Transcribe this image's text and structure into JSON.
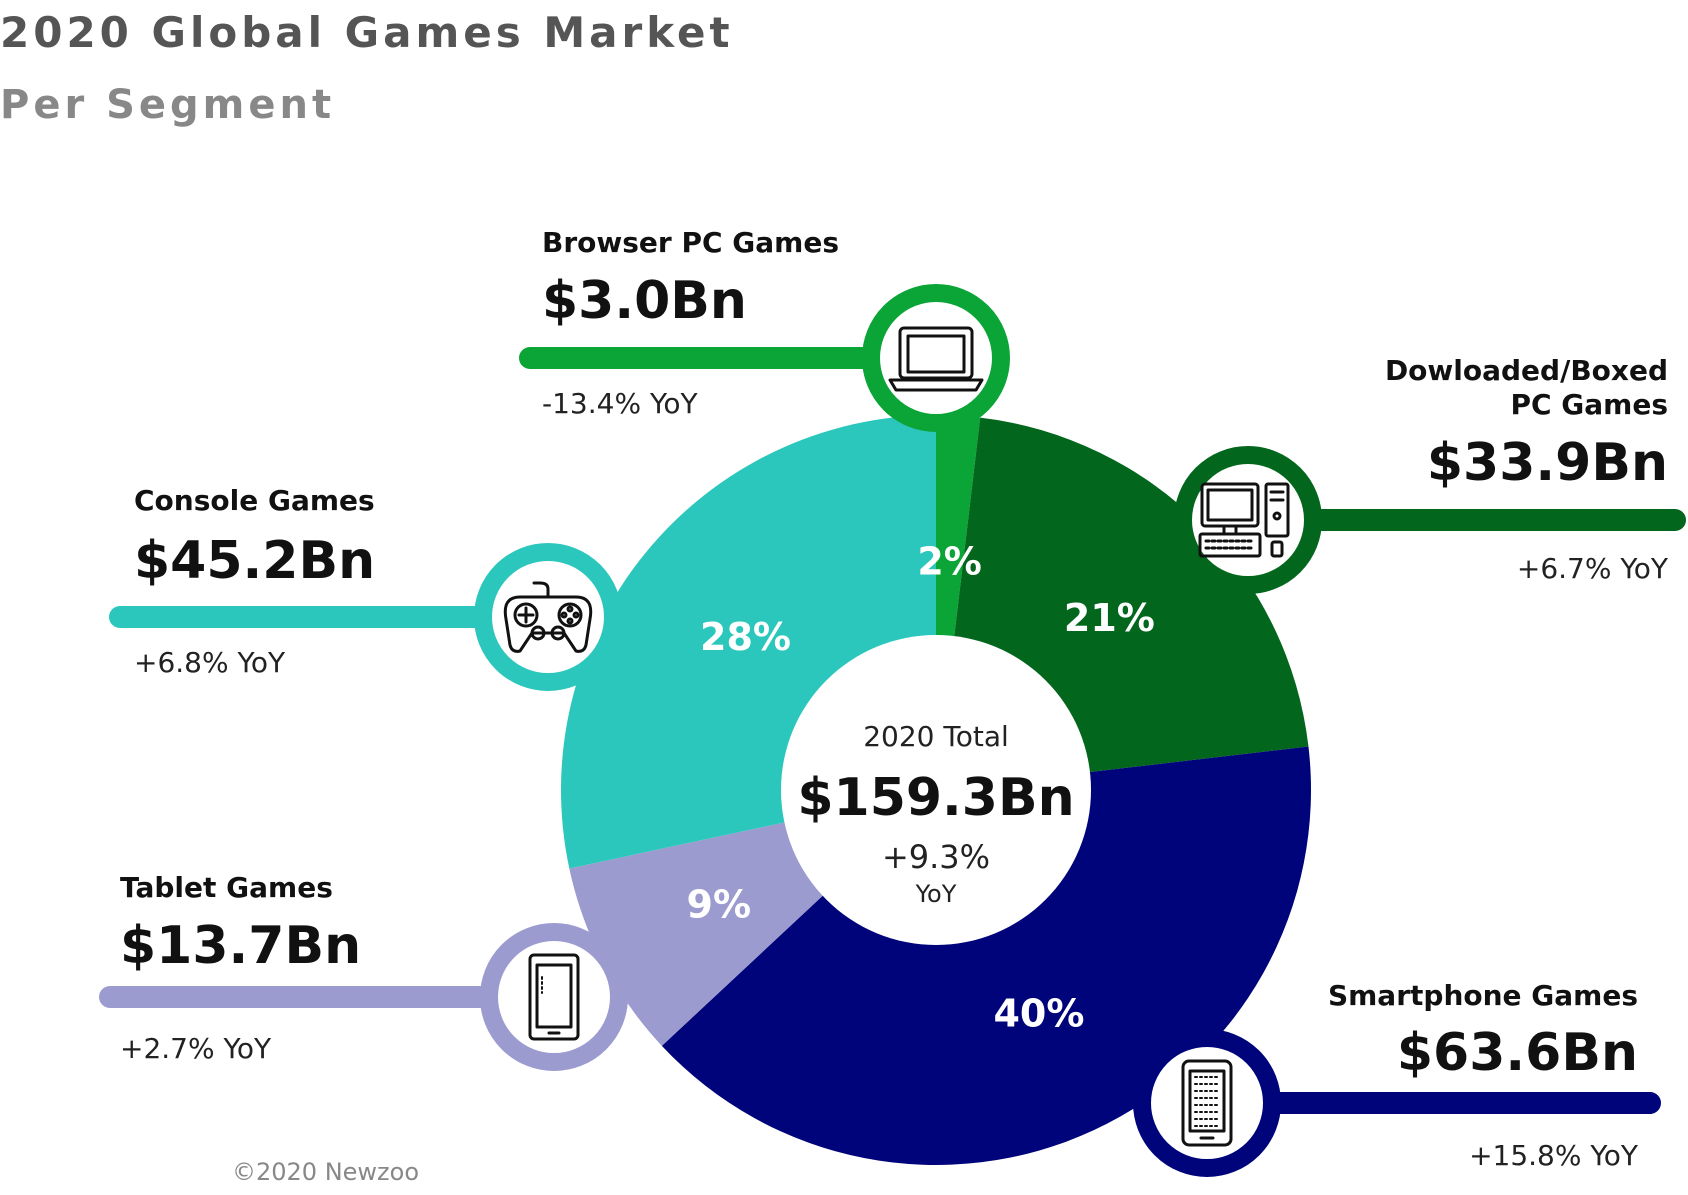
{
  "header": {
    "title": "2020 Global Games Market",
    "subtitle": "Per Segment"
  },
  "center": {
    "label": "2020 Total",
    "value": "$159.3Bn",
    "growth": "+9.3%",
    "growth_unit": "YoY"
  },
  "footer": {
    "copyright": "©2020 Newzoo"
  },
  "chart_data": {
    "type": "pie",
    "title": "2020 Global Games Market",
    "subtitle": "Per Segment",
    "total": 159.3,
    "total_growth_pct": 9.3,
    "unit": "$Bn",
    "slices": [
      {
        "label": "Browser PC Games",
        "value": 3.0,
        "value_label": "$3.0Bn",
        "share": 2,
        "share_label": "2%",
        "growth_pct": -13.4,
        "growth_label": "-13.4% YoY",
        "color": "#0aa536",
        "icon": "laptop-icon"
      },
      {
        "label": "Dowloaded/Boxed PC Games",
        "value": 33.9,
        "value_label": "$33.9Bn",
        "share": 21,
        "share_label": "21%",
        "growth_pct": 6.7,
        "growth_label": "+6.7% YoY",
        "color": "#03661d",
        "icon": "desktop-computer-icon"
      },
      {
        "label": "Smartphone Games",
        "value": 63.6,
        "value_label": "$63.6Bn",
        "share": 40,
        "share_label": "40%",
        "growth_pct": 15.8,
        "growth_label": "+15.8% YoY",
        "color": "#00047a",
        "icon": "smartphone-icon"
      },
      {
        "label": "Tablet Games",
        "value": 13.7,
        "value_label": "$13.7Bn",
        "share": 9,
        "share_label": "9%",
        "growth_pct": 2.7,
        "growth_label": "+2.7% YoY",
        "color": "#9b9bcf",
        "icon": "tablet-icon"
      },
      {
        "label": "Console Games",
        "value": 45.2,
        "value_label": "$45.2Bn",
        "share": 28,
        "share_label": "28%",
        "growth_pct": 6.8,
        "growth_label": "+6.8% YoY",
        "color": "#2cc7bc",
        "icon": "gamepad-icon"
      }
    ]
  }
}
